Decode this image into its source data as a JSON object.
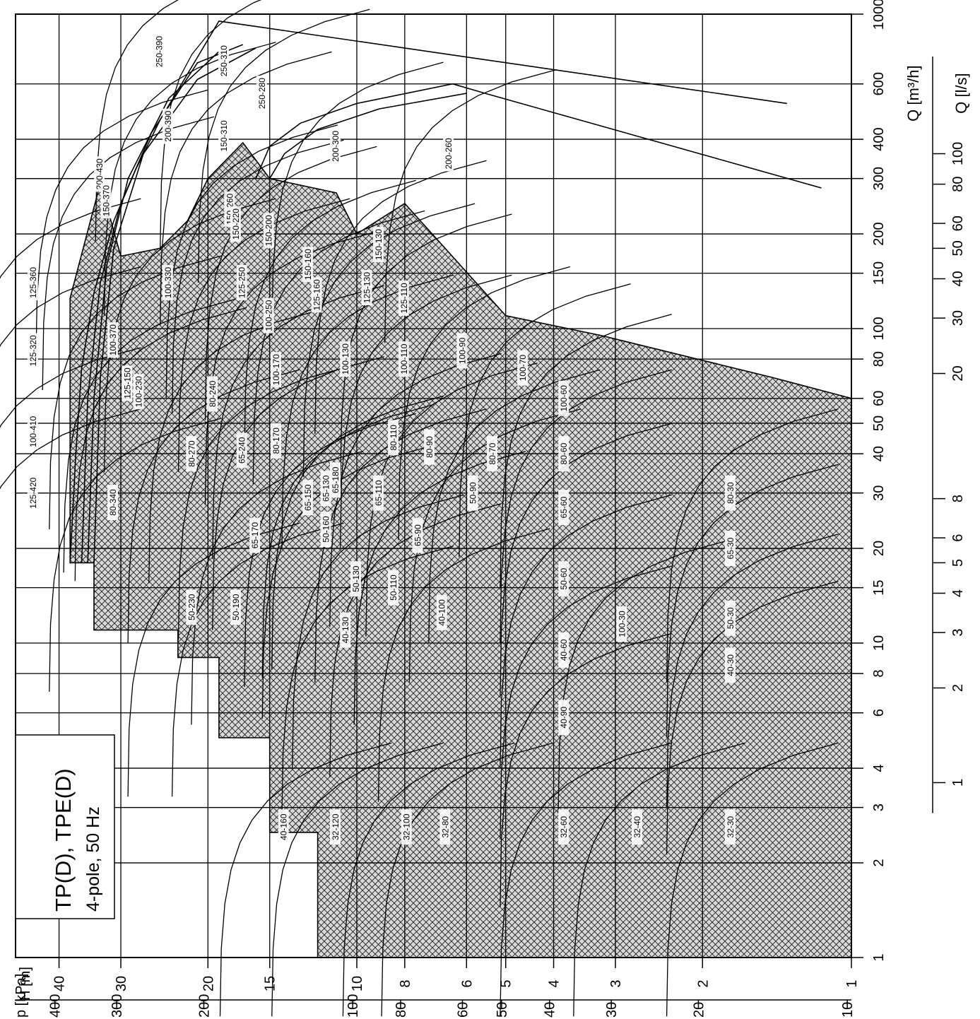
{
  "title_box": {
    "title": "TP(D), TPE(D)",
    "subtitle": "4-pole, 50 Hz"
  },
  "colors": {
    "line": "#000000",
    "hatch": "#222222",
    "fill": "#dcdcdc",
    "background": "#ffffff"
  },
  "chart_data": {
    "type": "line",
    "orientation": "rotated 90° clockwise (flow Q increases toward top, head H increases toward left)",
    "grid": true,
    "axes": {
      "q_m3h": {
        "label": "Q [m³/h]",
        "scale": "log",
        "range": [
          1,
          1000
        ],
        "ticks": [
          "1",
          "2",
          "3",
          "4",
          "6",
          "8",
          "10",
          "15",
          "20",
          "30",
          "40",
          "50",
          "60",
          "80",
          "100",
          "150",
          "200",
          "300",
          "400",
          "600",
          "1000"
        ]
      },
      "q_ls": {
        "label": "Q [l/s]",
        "scale": "log",
        "ticks": [
          "1",
          "2",
          "3",
          "4",
          "5",
          "6",
          "8",
          "20",
          "30",
          "40",
          "50",
          "60",
          "80",
          "100"
        ]
      },
      "h_m": {
        "label": "H [m]",
        "scale": "log",
        "range": [
          1,
          50
        ],
        "ticks": [
          "1",
          "2",
          "3",
          "4",
          "5",
          "6",
          "8",
          "10",
          "15",
          "20",
          "30",
          "40"
        ]
      },
      "p_kpa": {
        "label": "p [kPa]",
        "scale": "log",
        "ticks": [
          "10",
          "20",
          "30",
          "40",
          "50",
          "60",
          "80",
          "100",
          "200",
          "300",
          "400"
        ]
      }
    },
    "pump_ranges": [
      {
        "name": "250-390",
        "q": 760,
        "h": 25
      },
      {
        "name": "250-310",
        "q": 710,
        "h": 18.5
      },
      {
        "name": "250-280",
        "q": 560,
        "h": 15.5
      },
      {
        "name": "200-430",
        "q": 310,
        "h": 33
      },
      {
        "name": "200-390",
        "q": 440,
        "h": 24
      },
      {
        "name": "150-310",
        "q": 410,
        "h": 18.5
      },
      {
        "name": "200-300",
        "q": 380,
        "h": 11
      },
      {
        "name": "200-260",
        "q": 360,
        "h": 6.5
      },
      {
        "name": "150-370",
        "q": 255,
        "h": 32
      },
      {
        "name": "150-260",
        "q": 240,
        "h": 18
      },
      {
        "name": "150-220",
        "q": 215,
        "h": 17.5
      },
      {
        "name": "150-200",
        "q": 205,
        "h": 15
      },
      {
        "name": "150-160",
        "q": 160,
        "h": 12.5
      },
      {
        "name": "150-130",
        "q": 185,
        "h": 9
      },
      {
        "name": "125-360",
        "q": 140,
        "h": 45
      },
      {
        "name": "125-320",
        "q": 85,
        "h": 45
      },
      {
        "name": "100-370",
        "q": 92,
        "h": 31
      },
      {
        "name": "100-330",
        "q": 140,
        "h": 24
      },
      {
        "name": "125-250",
        "q": 140,
        "h": 17
      },
      {
        "name": "100-250",
        "q": 110,
        "h": 15
      },
      {
        "name": "125-160",
        "q": 128,
        "h": 12
      },
      {
        "name": "125-130",
        "q": 135,
        "h": 9.5
      },
      {
        "name": "125-110",
        "q": 125,
        "h": 8
      },
      {
        "name": "125-150",
        "q": 67,
        "h": 29
      },
      {
        "name": "100-230",
        "q": 63,
        "h": 27.5
      },
      {
        "name": "100-170",
        "q": 74,
        "h": 14.5
      },
      {
        "name": "100-130",
        "q": 80,
        "h": 10.5
      },
      {
        "name": "100-110",
        "q": 80,
        "h": 8
      },
      {
        "name": "100-90",
        "q": 85,
        "h": 6.1
      },
      {
        "name": "100-70",
        "q": 75,
        "h": 4.6
      },
      {
        "name": "100-60",
        "q": 60,
        "h": 3.8
      },
      {
        "name": "100-410",
        "q": 47,
        "h": 45
      },
      {
        "name": "80-270",
        "q": 40,
        "h": 21.5
      },
      {
        "name": "80-240",
        "q": 62,
        "h": 19.5
      },
      {
        "name": "65-240",
        "q": 41,
        "h": 17
      },
      {
        "name": "80-170",
        "q": 44,
        "h": 14.5
      },
      {
        "name": "80-110",
        "q": 45,
        "h": 8.4
      },
      {
        "name": "80-90",
        "q": 42,
        "h": 7.1
      },
      {
        "name": "80-70",
        "q": 40,
        "h": 5.3
      },
      {
        "name": "80-60",
        "q": 40,
        "h": 3.8
      },
      {
        "name": "80-30",
        "q": 30,
        "h": 1.75
      },
      {
        "name": "125-420",
        "q": 30,
        "h": 45
      },
      {
        "name": "80-340",
        "q": 28,
        "h": 31
      },
      {
        "name": "65-180",
        "q": 33,
        "h": 11
      },
      {
        "name": "65-150",
        "q": 29,
        "h": 12.5
      },
      {
        "name": "65-130",
        "q": 31,
        "h": 11.5
      },
      {
        "name": "65-110",
        "q": 30,
        "h": 9
      },
      {
        "name": "65-90",
        "q": 22,
        "h": 7.5
      },
      {
        "name": "50-90",
        "q": 30,
        "h": 5.8
      },
      {
        "name": "65-60",
        "q": 27,
        "h": 3.8
      },
      {
        "name": "65-170",
        "q": 22,
        "h": 16
      },
      {
        "name": "50-160",
        "q": 23,
        "h": 11.5
      },
      {
        "name": "50-130",
        "q": 16,
        "h": 10
      },
      {
        "name": "50-110",
        "q": 15,
        "h": 8.4
      },
      {
        "name": "50-60",
        "q": 16,
        "h": 3.8
      },
      {
        "name": "65-30",
        "q": 20,
        "h": 1.75
      },
      {
        "name": "50-230",
        "q": 13,
        "h": 21.5
      },
      {
        "name": "50-190",
        "q": 13,
        "h": 17.5
      },
      {
        "name": "40-130",
        "q": 11,
        "h": 10.5
      },
      {
        "name": "40-100",
        "q": 12.5,
        "h": 6.7
      },
      {
        "name": "40-60",
        "q": 9.5,
        "h": 3.8
      },
      {
        "name": "100-30",
        "q": 11.5,
        "h": 2.9
      },
      {
        "name": "50-30",
        "q": 12,
        "h": 1.75
      },
      {
        "name": "40-90",
        "q": 5.8,
        "h": 3.8
      },
      {
        "name": "40-30",
        "q": 8.5,
        "h": 1.75
      },
      {
        "name": "40-160",
        "q": 2.6,
        "h": 14
      },
      {
        "name": "32-120",
        "q": 2.6,
        "h": 11
      },
      {
        "name": "32-100",
        "q": 2.6,
        "h": 7.9
      },
      {
        "name": "32-80",
        "q": 2.6,
        "h": 6.6
      },
      {
        "name": "32-60",
        "q": 2.6,
        "h": 3.8
      },
      {
        "name": "32-40",
        "q": 2.6,
        "h": 2.7
      },
      {
        "name": "32-30",
        "q": 2.6,
        "h": 1.75
      }
    ]
  }
}
